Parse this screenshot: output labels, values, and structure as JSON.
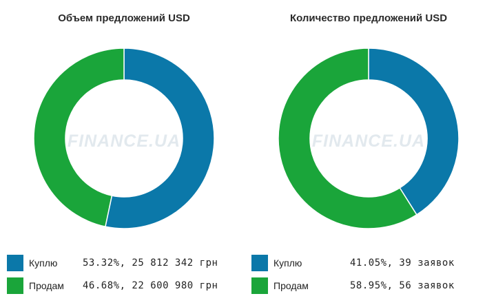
{
  "colors": {
    "buy": "#0b78a9",
    "sell": "#1aa53a"
  },
  "watermark": "FINANCE.UA",
  "chart_data": [
    {
      "type": "pie",
      "title": "Объем предложений USD",
      "series": [
        {
          "name": "Куплю",
          "value": 53.32,
          "label": "53.32%, 25 812 342 грн"
        },
        {
          "name": "Продам",
          "value": 46.68,
          "label": "46.68%, 22 600 980 грн"
        }
      ]
    },
    {
      "type": "pie",
      "title": "Количество предложений USD",
      "series": [
        {
          "name": "Куплю",
          "value": 41.05,
          "label": "41.05%, 39 заявок"
        },
        {
          "name": "Продам",
          "value": 58.95,
          "label": "58.95%, 56 заявок"
        }
      ]
    }
  ]
}
